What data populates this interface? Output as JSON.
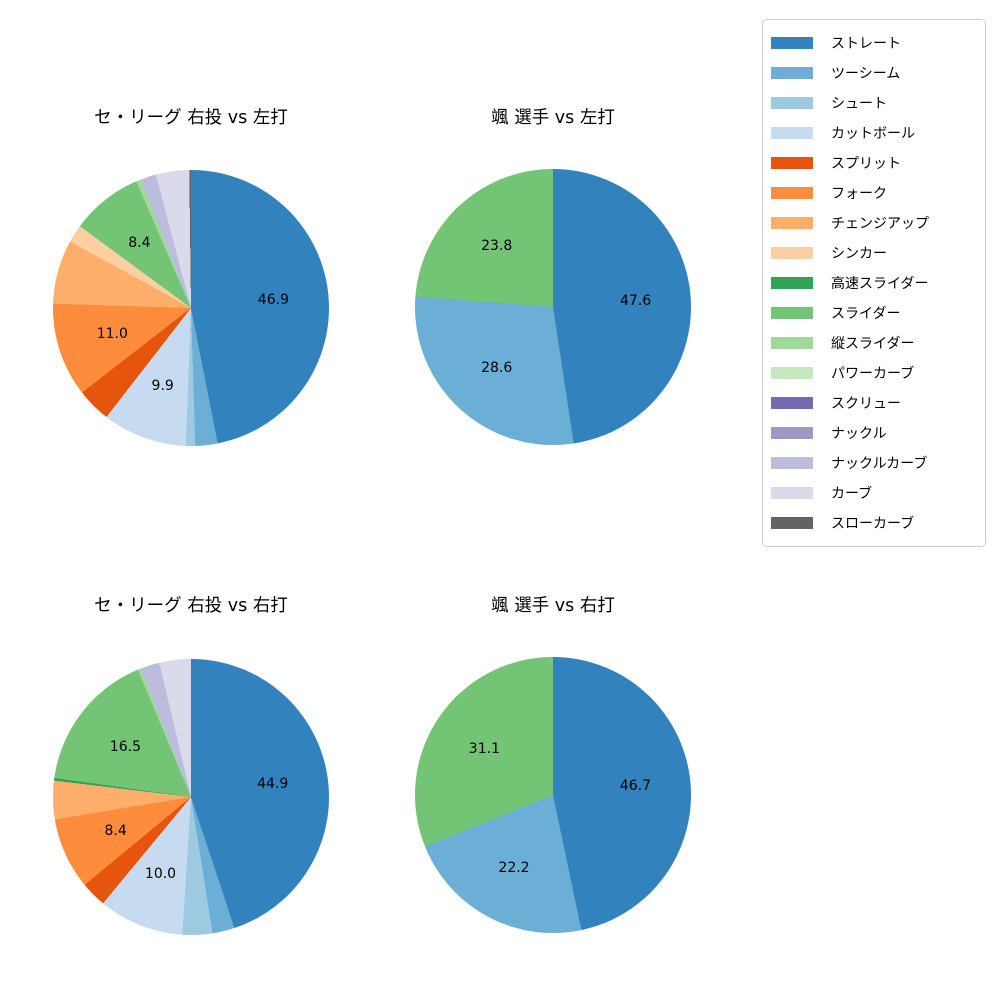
{
  "figure": {
    "background": "#ffffff",
    "text_color": "#000000"
  },
  "legend": {
    "position": "upper right",
    "items": [
      {
        "label": "ストレート",
        "color": "#3182bd"
      },
      {
        "label": "ツーシーム",
        "color": "#6baed6"
      },
      {
        "label": "シュート",
        "color": "#9ecae1"
      },
      {
        "label": "カットボール",
        "color": "#c6dbef"
      },
      {
        "label": "スプリット",
        "color": "#e6550d"
      },
      {
        "label": "フォーク",
        "color": "#fd8d3c"
      },
      {
        "label": "チェンジアップ",
        "color": "#fdae6b"
      },
      {
        "label": "シンカー",
        "color": "#fdd0a2"
      },
      {
        "label": "高速スライダー",
        "color": "#31a354"
      },
      {
        "label": "スライダー",
        "color": "#74c476"
      },
      {
        "label": "縦スライダー",
        "color": "#a1d99b"
      },
      {
        "label": "パワーカーブ",
        "color": "#c7e9c0"
      },
      {
        "label": "スクリュー",
        "color": "#756bb1"
      },
      {
        "label": "ナックル",
        "color": "#9e9ac8"
      },
      {
        "label": "ナックルカーブ",
        "color": "#bcbddc"
      },
      {
        "label": "カーブ",
        "color": "#dadaeb"
      },
      {
        "label": "スローカーブ",
        "color": "#636363"
      }
    ]
  },
  "chart_data": [
    {
      "type": "pie",
      "title": "セ・リーグ 右投 vs 左打",
      "start_angle": "top",
      "direction": "clockwise",
      "unit": "percent",
      "label_distance": 0.6,
      "slices": [
        {
          "name": "ストレート",
          "value": 46.9,
          "label": "46.9"
        },
        {
          "name": "ツーシーム",
          "value": 2.6,
          "label": ""
        },
        {
          "name": "シュート",
          "value": 1.1,
          "label": ""
        },
        {
          "name": "カットボール",
          "value": 9.9,
          "label": "9.9"
        },
        {
          "name": "スプリット",
          "value": 4.0,
          "label": ""
        },
        {
          "name": "フォーク",
          "value": 11.0,
          "label": "11.0"
        },
        {
          "name": "チェンジアップ",
          "value": 7.5,
          "label": ""
        },
        {
          "name": "シンカー",
          "value": 2.1,
          "label": ""
        },
        {
          "name": "スライダー",
          "value": 8.4,
          "label": "8.4"
        },
        {
          "name": "縦スライダー",
          "value": 0.6,
          "label": ""
        },
        {
          "name": "ナックルカーブ",
          "value": 1.8,
          "label": ""
        },
        {
          "name": "カーブ",
          "value": 3.9,
          "label": ""
        },
        {
          "name": "スローカーブ",
          "value": 0.2,
          "label": ""
        }
      ]
    },
    {
      "type": "pie",
      "title": "颯 選手 vs 左打",
      "start_angle": "top",
      "direction": "clockwise",
      "unit": "percent",
      "label_distance": 0.6,
      "slices": [
        {
          "name": "ストレート",
          "value": 47.6,
          "label": "47.6"
        },
        {
          "name": "ツーシーム",
          "value": 28.6,
          "label": "28.6"
        },
        {
          "name": "スライダー",
          "value": 23.8,
          "label": "23.8"
        }
      ]
    },
    {
      "type": "pie",
      "title": "セ・リーグ 右投 vs 右打",
      "start_angle": "top",
      "direction": "clockwise",
      "unit": "percent",
      "label_distance": 0.6,
      "slices": [
        {
          "name": "ストレート",
          "value": 44.9,
          "label": "44.9"
        },
        {
          "name": "ツーシーム",
          "value": 2.6,
          "label": ""
        },
        {
          "name": "シュート",
          "value": 3.5,
          "label": ""
        },
        {
          "name": "カットボール",
          "value": 10.0,
          "label": "10.0"
        },
        {
          "name": "スプリット",
          "value": 3.0,
          "label": ""
        },
        {
          "name": "フォーク",
          "value": 8.4,
          "label": "8.4"
        },
        {
          "name": "チェンジアップ",
          "value": 4.5,
          "label": ""
        },
        {
          "name": "高速スライダー",
          "value": 0.3,
          "label": ""
        },
        {
          "name": "スライダー",
          "value": 16.5,
          "label": "16.5"
        },
        {
          "name": "縦スライダー",
          "value": 0.4,
          "label": ""
        },
        {
          "name": "ナックルカーブ",
          "value": 2.2,
          "label": ""
        },
        {
          "name": "カーブ",
          "value": 3.7,
          "label": ""
        }
      ]
    },
    {
      "type": "pie",
      "title": "颯 選手 vs 右打",
      "start_angle": "top",
      "direction": "clockwise",
      "unit": "percent",
      "label_distance": 0.6,
      "slices": [
        {
          "name": "ストレート",
          "value": 46.7,
          "label": "46.7"
        },
        {
          "name": "ツーシーム",
          "value": 22.2,
          "label": "22.2"
        },
        {
          "name": "スライダー",
          "value": 31.1,
          "label": "31.1"
        }
      ]
    }
  ]
}
